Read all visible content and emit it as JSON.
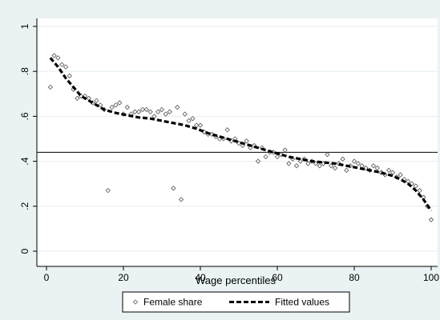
{
  "chart_data": {
    "type": "scatter",
    "title": "",
    "xlabel": "Wage percentiles",
    "ylabel": "",
    "xlim": [
      0,
      100
    ],
    "ylim": [
      0,
      1
    ],
    "x_ticks": [
      0,
      20,
      40,
      60,
      80,
      100
    ],
    "y_ticks": [
      0,
      0.2,
      0.4,
      0.6,
      0.8,
      1
    ],
    "x_tick_labels": [
      "0",
      "20",
      "40",
      "60",
      "80",
      "100"
    ],
    "y_tick_labels": [
      "0",
      ".2",
      ".4",
      ".6",
      ".8",
      "1"
    ],
    "grid": "horizontal",
    "legend_position": "bottom",
    "reference_line": {
      "y": 0.44
    },
    "colors": {
      "background_outer": "#eaf2f3",
      "plot_background": "#ffffff",
      "grid": "#e4eef0",
      "markers": "#555555",
      "fitted": "#000000",
      "reference_line": "#000000"
    },
    "series": [
      {
        "name": "Female share",
        "type": "scatter",
        "marker": "hollow-diamond",
        "x": [
          1,
          2,
          3,
          4,
          5,
          6,
          7,
          8,
          9,
          10,
          11,
          12,
          13,
          14,
          15,
          16,
          17,
          18,
          19,
          20,
          21,
          22,
          23,
          24,
          25,
          26,
          27,
          28,
          29,
          30,
          31,
          32,
          33,
          34,
          35,
          36,
          37,
          38,
          39,
          40,
          41,
          42,
          43,
          44,
          45,
          46,
          47,
          48,
          49,
          50,
          51,
          52,
          53,
          54,
          55,
          56,
          57,
          58,
          59,
          60,
          61,
          62,
          63,
          64,
          65,
          66,
          67,
          68,
          69,
          70,
          71,
          72,
          73,
          74,
          75,
          76,
          77,
          78,
          79,
          80,
          81,
          82,
          83,
          84,
          85,
          86,
          87,
          88,
          89,
          90,
          91,
          92,
          93,
          94,
          95,
          96,
          97,
          98,
          99,
          100
        ],
        "y": [
          0.73,
          0.87,
          0.86,
          0.83,
          0.82,
          0.78,
          0.72,
          0.68,
          0.69,
          0.69,
          0.68,
          0.66,
          0.67,
          0.65,
          0.63,
          0.27,
          0.64,
          0.65,
          0.66,
          0.61,
          0.64,
          0.61,
          0.62,
          0.62,
          0.63,
          0.63,
          0.62,
          0.6,
          0.62,
          0.63,
          0.61,
          0.62,
          0.28,
          0.64,
          0.23,
          0.61,
          0.58,
          0.59,
          0.56,
          0.56,
          0.53,
          0.52,
          0.52,
          0.51,
          0.5,
          0.5,
          0.54,
          0.49,
          0.5,
          0.48,
          0.47,
          0.49,
          0.46,
          0.47,
          0.4,
          0.46,
          0.42,
          0.44,
          0.44,
          0.42,
          0.43,
          0.45,
          0.39,
          0.41,
          0.38,
          0.4,
          0.41,
          0.39,
          0.4,
          0.39,
          0.38,
          0.39,
          0.43,
          0.38,
          0.37,
          0.39,
          0.41,
          0.36,
          0.38,
          0.4,
          0.39,
          0.38,
          0.37,
          0.36,
          0.38,
          0.37,
          0.35,
          0.34,
          0.36,
          0.35,
          0.33,
          0.34,
          0.32,
          0.31,
          0.3,
          0.29,
          0.27,
          0.24,
          0.2,
          0.14
        ]
      },
      {
        "name": "Fitted values",
        "type": "line",
        "style": "dashed",
        "x": [
          1,
          3,
          5,
          7,
          9,
          12,
          15,
          18,
          21,
          24,
          27,
          30,
          33,
          36,
          39,
          42,
          45,
          48,
          51,
          54,
          57,
          60,
          63,
          66,
          69,
          72,
          75,
          78,
          81,
          84,
          87,
          90,
          92,
          94,
          96,
          98,
          100
        ],
        "y": [
          0.86,
          0.82,
          0.77,
          0.73,
          0.69,
          0.66,
          0.63,
          0.615,
          0.605,
          0.595,
          0.59,
          0.58,
          0.57,
          0.56,
          0.545,
          0.525,
          0.51,
          0.495,
          0.48,
          0.465,
          0.45,
          0.435,
          0.42,
          0.41,
          0.4,
          0.395,
          0.39,
          0.38,
          0.37,
          0.36,
          0.35,
          0.335,
          0.32,
          0.3,
          0.27,
          0.23,
          0.18
        ]
      }
    ]
  }
}
